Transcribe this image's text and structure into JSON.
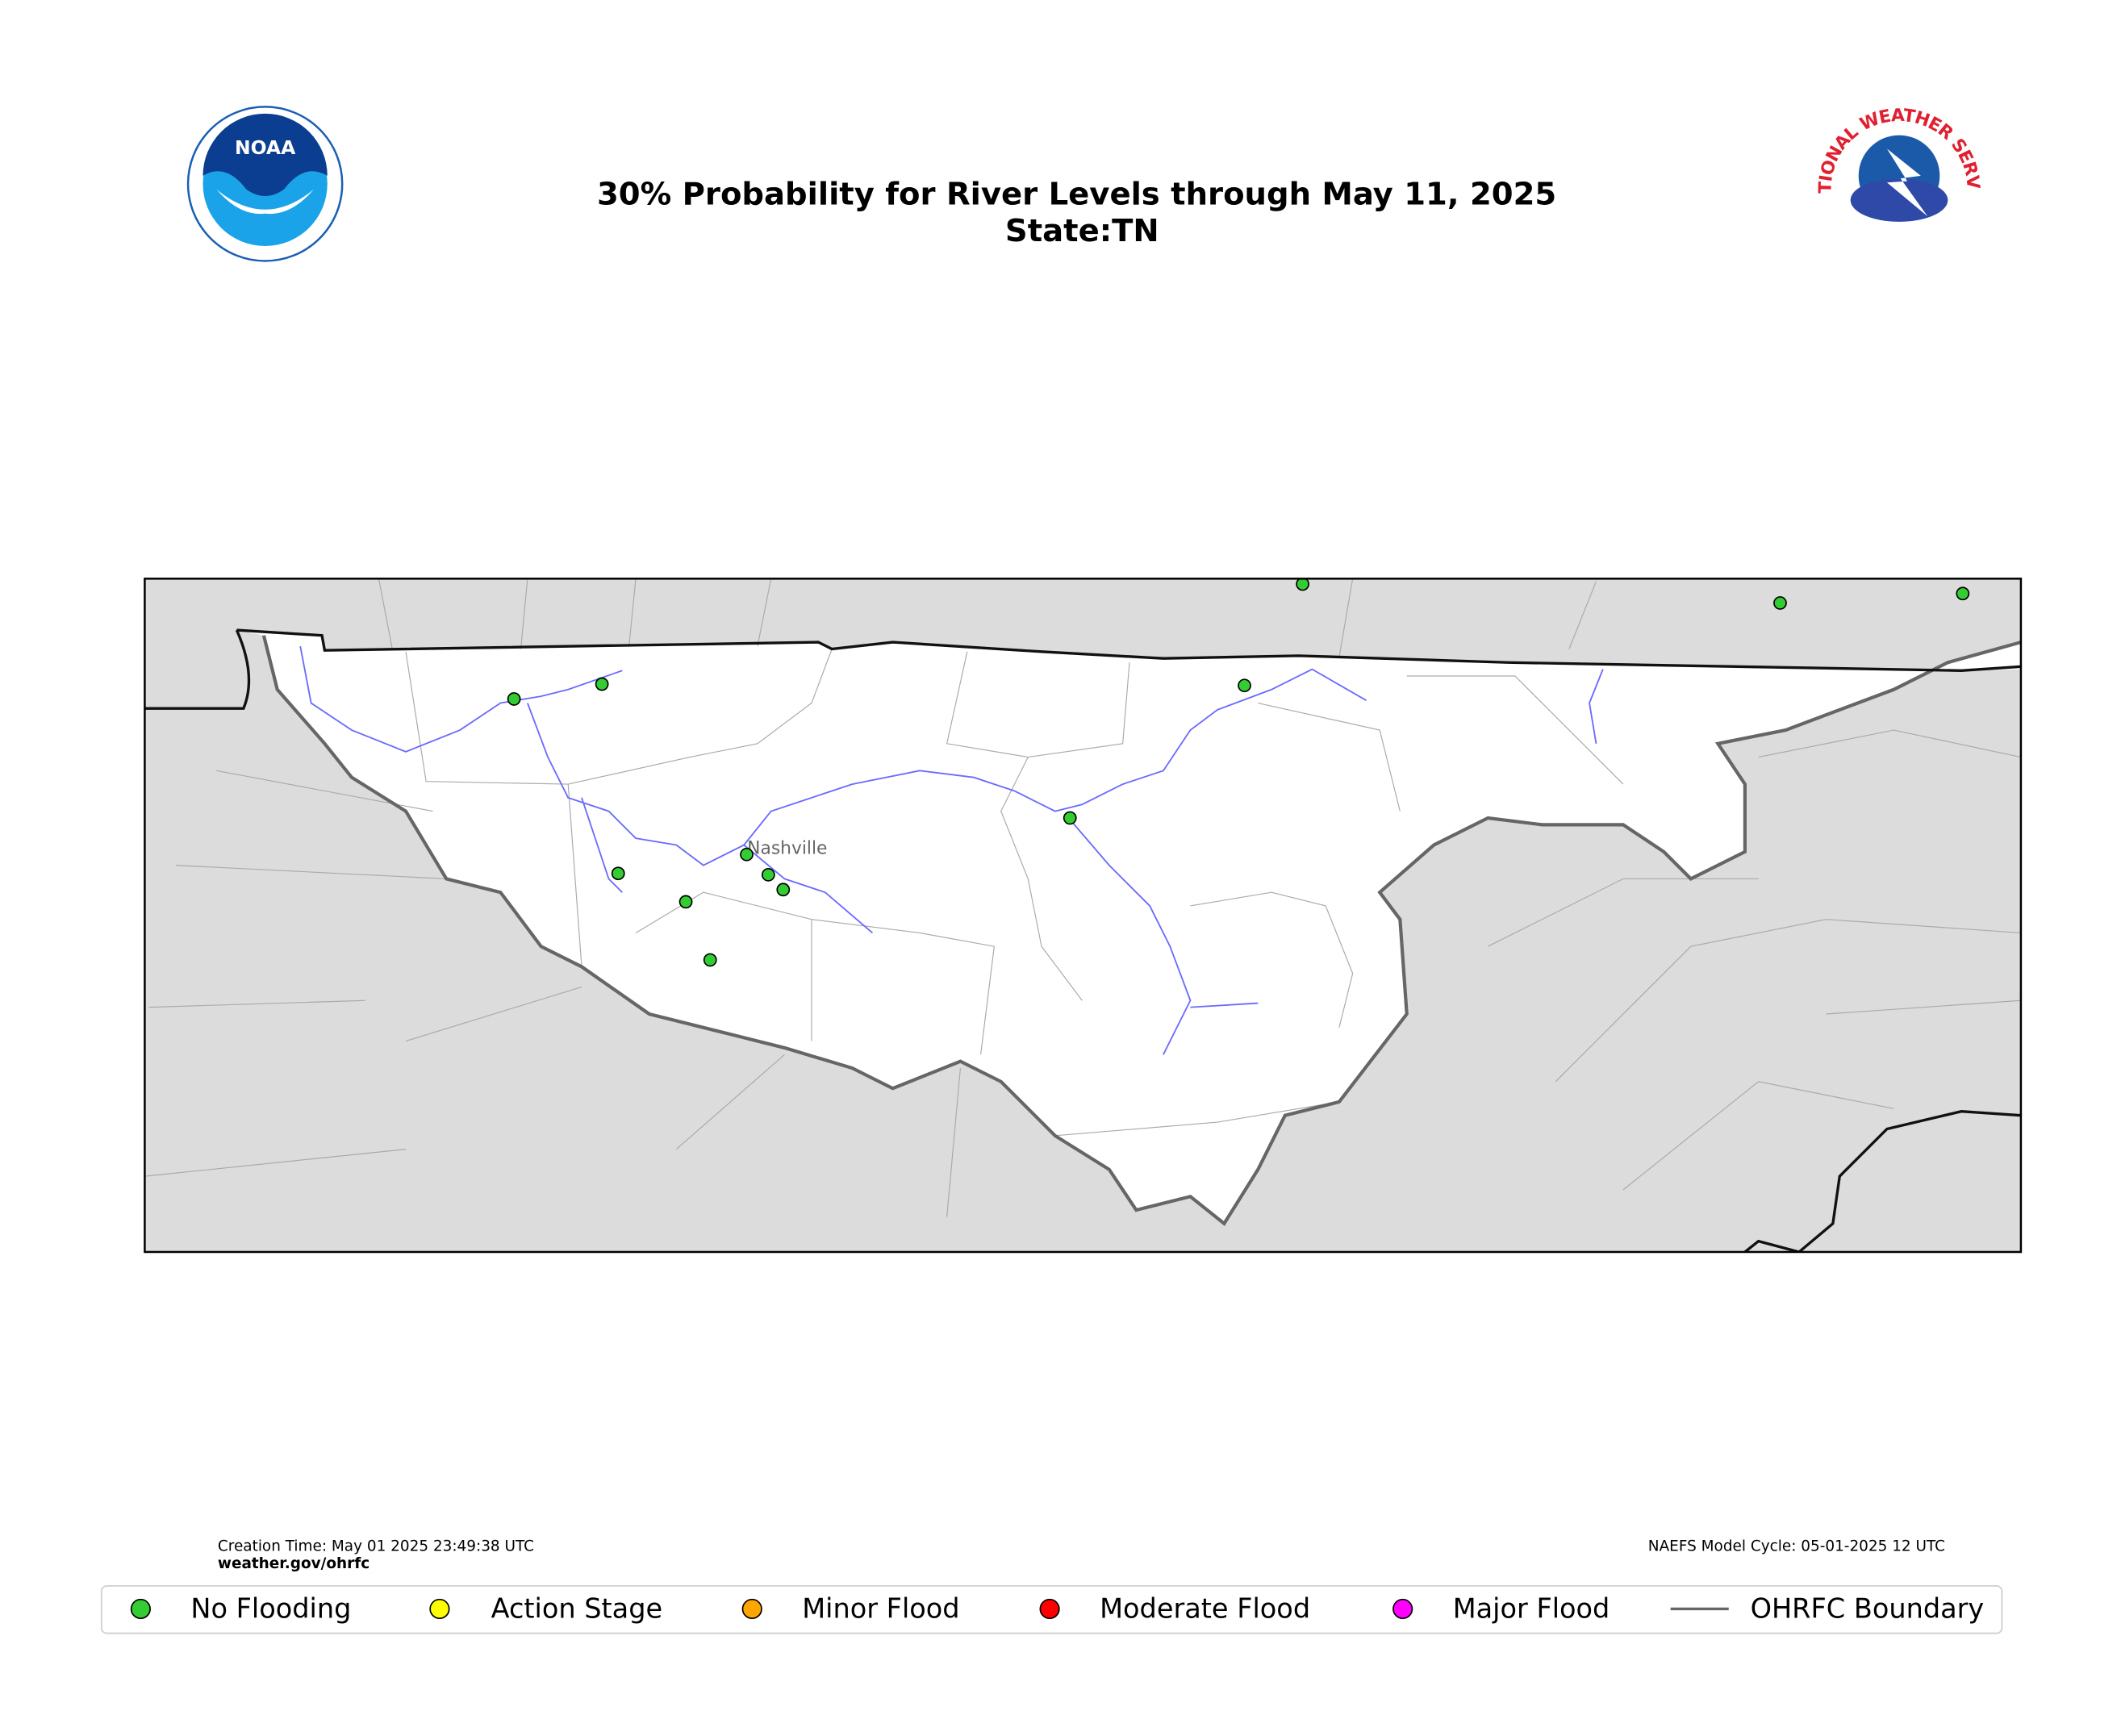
{
  "title": "30% Probability for River Levels through May 11, 2025",
  "subtitle": "State:TN",
  "logos": {
    "noaa": "NOAA",
    "nws": "NATIONAL WEATHER SERVICE"
  },
  "city_label": "Nashville",
  "footer": {
    "creation_time": "Creation Time: May 01 2025 23:49:38 UTC",
    "website": "weather.gov/ohrfc",
    "model_cycle": "NAEFS Model Cycle: 05-01-2025 12 UTC"
  },
  "legend": [
    {
      "label": "No Flooding",
      "color": "#33cc33",
      "marker": "circle"
    },
    {
      "label": "Action Stage",
      "color": "#ffff00",
      "marker": "circle"
    },
    {
      "label": "Minor Flood",
      "color": "#ffa500",
      "marker": "circle"
    },
    {
      "label": "Moderate Flood",
      "color": "#ff0000",
      "marker": "circle"
    },
    {
      "label": "Major Flood",
      "color": "#ff00ff",
      "marker": "circle"
    },
    {
      "label": "OHRFC Boundary",
      "color": "#666666",
      "marker": "line"
    }
  ]
}
